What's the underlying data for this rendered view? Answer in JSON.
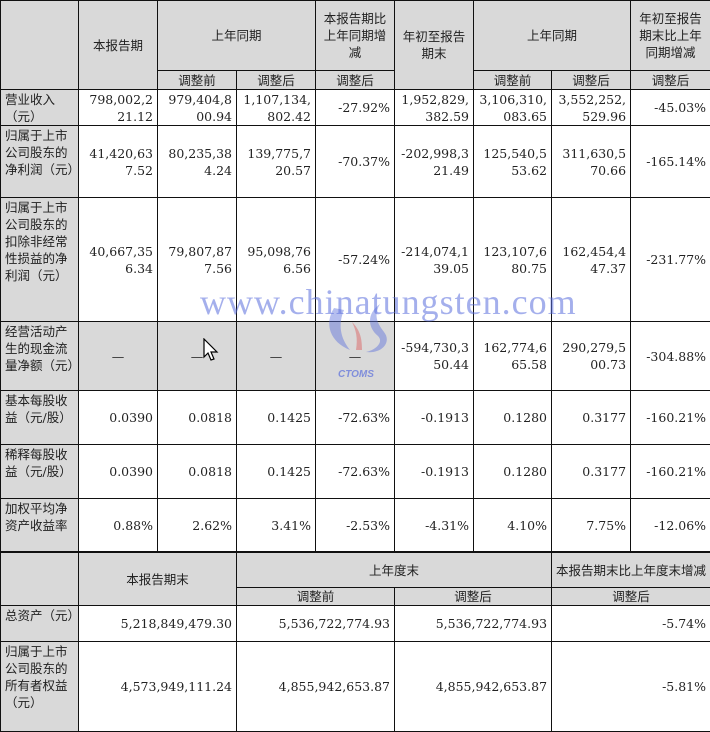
{
  "table1": {
    "header": {
      "current_period": "本报告期",
      "same_period_last_year": "上年同期",
      "change_vs_last_year": "本报告期比上年同期增减",
      "ytd": "年初至报告期末",
      "same_period_last_year_2": "上年同期",
      "ytd_change": "年初至报告期末比上年同期增减",
      "before_adj": "调整前",
      "after_adj": "调整后",
      "after_adj_change": "调整后"
    },
    "rows": [
      {
        "label": "营业收入（元）",
        "values": [
          "798,002,221.12",
          "979,404,800.94",
          "1,107,134,802.42",
          "-27.92%",
          "1,952,829,382.59",
          "3,106,310,083.65",
          "3,552,252,529.96",
          "-45.03%"
        ]
      },
      {
        "label": "归属于上市公司股东的净利润（元）",
        "values": [
          "41,420,637.52",
          "80,235,384.24",
          "139,775,720.57",
          "-70.37%",
          "-202,998,321.49",
          "125,540,553.62",
          "311,630,570.66",
          "-165.14%"
        ]
      },
      {
        "label": "归属于上市公司股东的扣除非经常性损益的净利润（元）",
        "values": [
          "40,667,356.34",
          "79,807,877.56",
          "95,098,766.56",
          "-57.24%",
          "-214,074,139.05",
          "123,107,680.75",
          "162,454,447.37",
          "-231.77%"
        ]
      },
      {
        "label": "经营活动产生的现金流量净额（元）",
        "values": [
          "—",
          "—",
          "—",
          "—",
          "-594,730,350.44",
          "162,774,665.58",
          "290,279,500.73",
          "-304.88%"
        ]
      },
      {
        "label": "基本每股收益（元/股）",
        "values": [
          "0.0390",
          "0.0818",
          "0.1425",
          "-72.63%",
          "-0.1913",
          "0.1280",
          "0.3177",
          "-160.21%"
        ]
      },
      {
        "label": "稀释每股收益（元/股）",
        "values": [
          "0.0390",
          "0.0818",
          "0.1425",
          "-72.63%",
          "-0.1913",
          "0.1280",
          "0.3177",
          "-160.21%"
        ]
      },
      {
        "label": "加权平均净资产收益率",
        "values": [
          "0.88%",
          "2.62%",
          "3.41%",
          "-2.53%",
          "-4.31%",
          "4.10%",
          "7.75%",
          "-12.06%"
        ]
      }
    ]
  },
  "table2": {
    "header": {
      "current_period_end": "本报告期末",
      "last_year_end": "上年度末",
      "change_vs_last_year_end": "本报告期末比上年度末增减",
      "before_adj": "调整前",
      "after_adj": "调整后",
      "after_adj_change": "调整后"
    },
    "rows": [
      {
        "label": "总资产（元）",
        "values": [
          "5,218,849,479.30",
          "5,536,722,774.93",
          "5,536,722,774.93",
          "-5.74%"
        ]
      },
      {
        "label": "归属于上市公司股东的所有者权益（元）",
        "values": [
          "4,573,949,111.24",
          "4,855,942,653.87",
          "4,855,942,653.87",
          "-5.81%"
        ]
      }
    ]
  },
  "watermark": {
    "url": "www.chinatungsten.com",
    "logo": "CTOMS"
  },
  "colors": {
    "header_bg": "#d9d9d9",
    "border": "#111111",
    "watermark": "#5a6edc"
  }
}
